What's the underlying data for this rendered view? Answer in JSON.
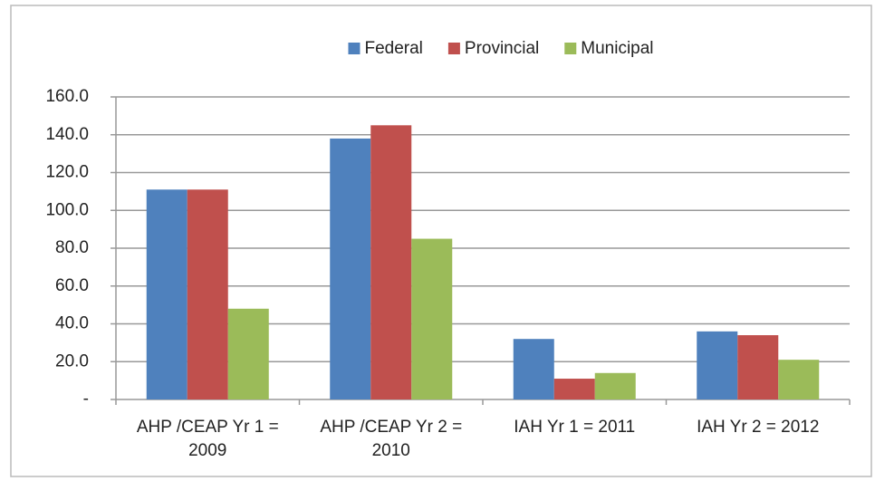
{
  "chart_data": {
    "type": "bar",
    "categories": [
      "AHP /CEAP Yr 1 = 2009",
      "AHP /CEAP Yr 2 = 2010",
      "IAH Yr 1 = 2011",
      "IAH Yr 2 = 2012"
    ],
    "series": [
      {
        "name": "Federal",
        "color": "#4f81bd",
        "values": [
          111,
          138,
          32,
          36
        ]
      },
      {
        "name": "Provincial",
        "color": "#c0504d",
        "values": [
          111,
          145,
          11,
          34
        ]
      },
      {
        "name": "Municipal",
        "color": "#9bbb59",
        "values": [
          48,
          85,
          14,
          21
        ]
      }
    ],
    "ylim": [
      0,
      160
    ],
    "yticks": [
      {
        "value": 0,
        "label": "-"
      },
      {
        "value": 20,
        "label": "20.0"
      },
      {
        "value": 40,
        "label": "40.0"
      },
      {
        "value": 60,
        "label": "60.0"
      },
      {
        "value": 80,
        "label": "80.0"
      },
      {
        "value": 100,
        "label": "100.0"
      },
      {
        "value": 120,
        "label": "120.0"
      },
      {
        "value": 140,
        "label": "140.0"
      },
      {
        "value": 160,
        "label": "160.0"
      }
    ],
    "grid": true,
    "legend": "top"
  }
}
